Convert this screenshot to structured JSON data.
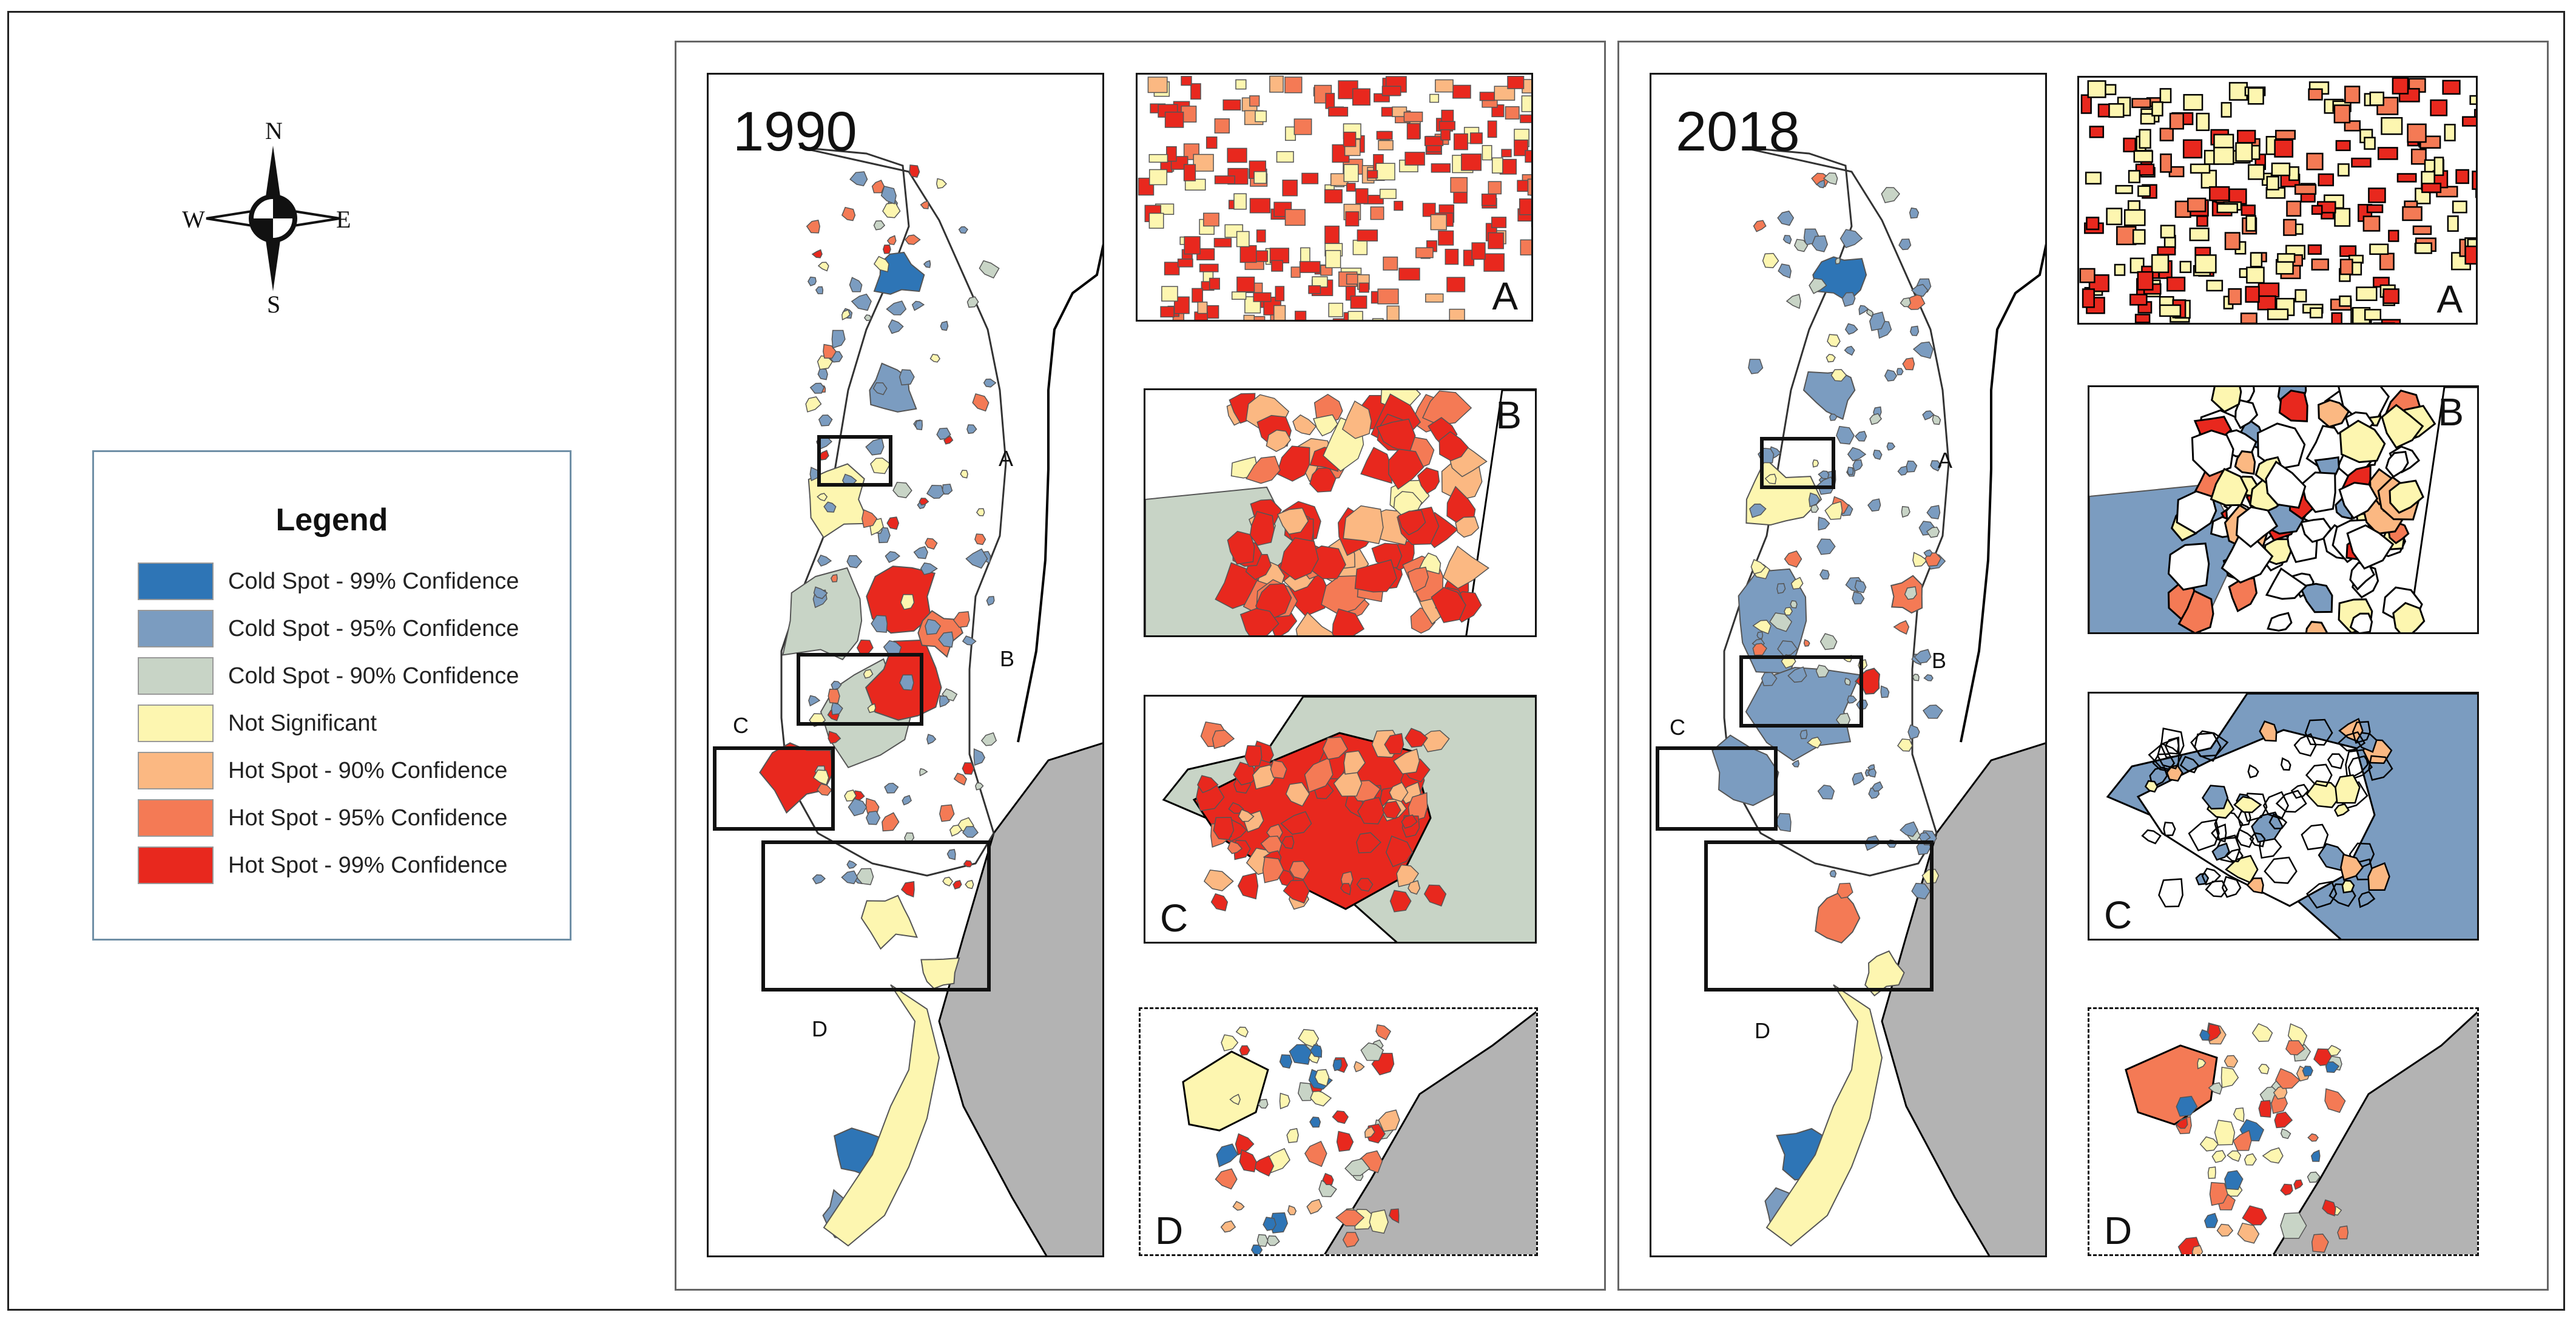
{
  "compass": {
    "n": "N",
    "s": "S",
    "e": "E",
    "w": "W"
  },
  "legend": {
    "title": "Legend",
    "items": [
      {
        "label": "Cold Spot - 99% Confidence",
        "color": "#2e75b6"
      },
      {
        "label": "Cold Spot - 95% Confidence",
        "color": "#7b9cc0"
      },
      {
        "label": "Cold Spot - 90% Confidence",
        "color": "#c8d4c6"
      },
      {
        "label": "Not Significant",
        "color": "#fdf6b0"
      },
      {
        "label": "Hot Spot - 90% Confidence",
        "color": "#fbb882"
      },
      {
        "label": "Hot Spot - 95% Confidence",
        "color": "#f47a55"
      },
      {
        "label": "Hot Spot - 99% Confidence",
        "color": "#e8281e"
      }
    ]
  },
  "colors": {
    "ocean_gray": "#b3b3b3",
    "outline": "#555555",
    "boundary": "#111111"
  },
  "panels": [
    {
      "year": "1990",
      "box_labels": {
        "a": "A",
        "b": "B",
        "c": "C",
        "d": "D"
      },
      "insets": {
        "a": "A",
        "b": "B",
        "c": "C",
        "d": "D"
      }
    },
    {
      "year": "2018",
      "box_labels": {
        "a": "A",
        "b": "B",
        "c": "C",
        "d": "D"
      },
      "insets": {
        "a": "A",
        "b": "B",
        "c": "C",
        "d": "D"
      }
    }
  ]
}
